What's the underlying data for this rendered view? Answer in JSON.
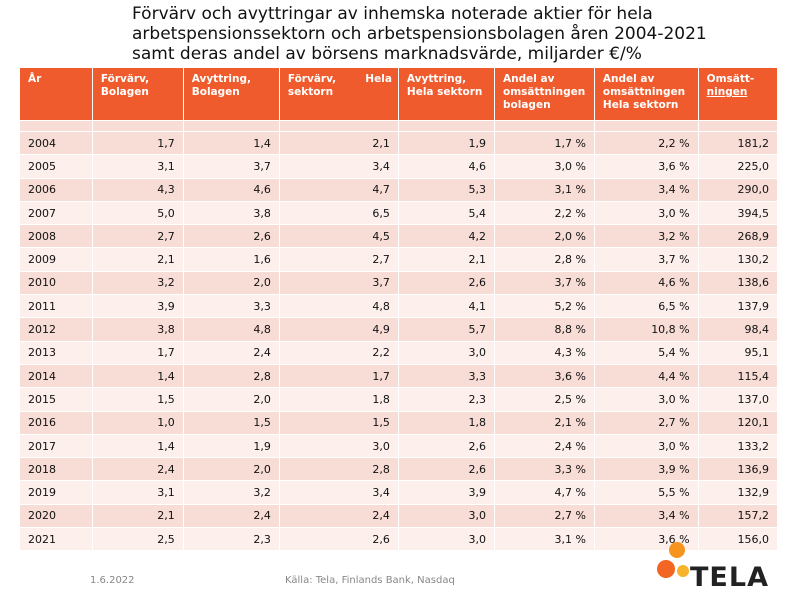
{
  "title_lines": [
    "Förvärv och avyttringar av inhemska noterade aktier för hela",
    "arbetspensionssektorn och arbetspensionsbolagen åren 2004-2021",
    "samt deras andel av börsens marknadsvärde, miljarder €/%"
  ],
  "columns": [
    {
      "line1": "År",
      "line2": "",
      "line3": ""
    },
    {
      "line1": "Förvärv,",
      "line2": "Bolagen",
      "line3": ""
    },
    {
      "line1": "Avyttring,",
      "line2": "Bolagen",
      "line3": ""
    },
    {
      "line1": "Förvärv,        Hela",
      "line2": "sektorn",
      "line3": ""
    },
    {
      "line1": "Avyttring,",
      "line2": "Hela sektorn",
      "line3": ""
    },
    {
      "line1": "Andel av",
      "line2": "omsättningen",
      "line3": "bolagen"
    },
    {
      "line1": "Andel av",
      "line2": "omsättningen",
      "line3": "Hela sektorn"
    },
    {
      "line1": "Omsätt-",
      "line2": "ningen",
      "line3": ""
    }
  ],
  "rows": [
    [
      "2004",
      "1,7",
      "1,4",
      "2,1",
      "1,9",
      "1,7 %",
      "2,2 %",
      "181,2"
    ],
    [
      "2005",
      "3,1",
      "3,7",
      "3,4",
      "4,6",
      "3,0 %",
      "3,6 %",
      "225,0"
    ],
    [
      "2006",
      "4,3",
      "4,6",
      "4,7",
      "5,3",
      "3,1 %",
      "3,4 %",
      "290,0"
    ],
    [
      "2007",
      "5,0",
      "3,8",
      "6,5",
      "5,4",
      "2,2 %",
      "3,0 %",
      "394,5"
    ],
    [
      "2008",
      "2,7",
      "2,6",
      "4,5",
      "4,2",
      "2,0 %",
      "3,2 %",
      "268,9"
    ],
    [
      "2009",
      "2,1",
      "1,6",
      "2,7",
      "2,1",
      "2,8 %",
      "3,7 %",
      "130,2"
    ],
    [
      "2010",
      "3,2",
      "2,0",
      "3,7",
      "2,6",
      "3,7 %",
      "4,6 %",
      "138,6"
    ],
    [
      "2011",
      "3,9",
      "3,3",
      "4,8",
      "4,1",
      "5,2 %",
      "6,5 %",
      "137,9"
    ],
    [
      "2012",
      "3,8",
      "4,8",
      "4,9",
      "5,7",
      "8,8 %",
      "10,8 %",
      "98,4"
    ],
    [
      "2013",
      "1,7",
      "2,4",
      "2,2",
      "3,0",
      "4,3 %",
      "5,4 %",
      "95,1"
    ],
    [
      "2014",
      "1,4",
      "2,8",
      "1,7",
      "3,3",
      "3,6 %",
      "4,4 %",
      "115,4"
    ],
    [
      "2015",
      "1,5",
      "2,0",
      "1,8",
      "2,3",
      "2,5 %",
      "3,0 %",
      "137,0"
    ],
    [
      "2016",
      "1,0",
      "1,5",
      "1,5",
      "1,8",
      "2,1 %",
      "2,7 %",
      "120,1"
    ],
    [
      "2017",
      "1,4",
      "1,9",
      "3,0",
      "2,6",
      "2,4 %",
      "3,0 %",
      "133,2"
    ],
    [
      "2018",
      "2,4",
      "2,0",
      "2,8",
      "2,6",
      "3,3 %",
      "3,9 %",
      "136,9"
    ],
    [
      "2019",
      "3,1",
      "3,2",
      "3,4",
      "3,9",
      "4,7 %",
      "5,5 %",
      "132,9"
    ],
    [
      "2020",
      "2,1",
      "2,4",
      "2,4",
      "3,0",
      "2,7 %",
      "3,4 %",
      "157,2"
    ],
    [
      "2021",
      "2,5",
      "2,3",
      "2,6",
      "3,0",
      "3,1 %",
      "3,6 %",
      "156,0"
    ]
  ],
  "footer": {
    "date": "1.6.2022",
    "source": "Källa: Tela, Finlands Bank, Nasdaq"
  },
  "logo": {
    "text": "TELA",
    "dot_colors": [
      "#f7941d",
      "#f26522",
      "#f7b32b"
    ]
  }
}
